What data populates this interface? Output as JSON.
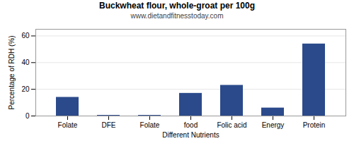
{
  "chart_data": {
    "type": "bar",
    "title": "Buckwheat flour, whole-groat per 100g",
    "subtitle": "www.dietandfitnesstoday.com",
    "xlabel": "Different Nutrients",
    "ylabel": "Percentage of RDH (%)",
    "categories": [
      "Folate",
      "DFE",
      "Folate",
      "food",
      "Folic acid",
      "Energy",
      "Protein"
    ],
    "values": [
      14,
      0.5,
      0.5,
      17,
      23,
      6,
      54
    ],
    "color": "#2b4a8b",
    "ylim": [
      0,
      65
    ],
    "yticks": [
      0,
      20,
      40,
      60
    ],
    "grid": true
  }
}
